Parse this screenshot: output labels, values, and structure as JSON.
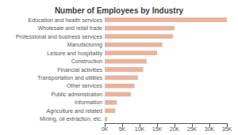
{
  "chart_data": {
    "type": "bar",
    "orientation": "horizontal",
    "title": "Number of Employees by Industry",
    "categories": [
      "Mining, oil extraction, etc.",
      "Agriculture and related",
      "Information",
      "Public administration",
      "Other services",
      "Transportation and utilities",
      "Financial activities",
      "Construction",
      "Leisure and hospitality",
      "Manufacturing",
      "Professional and business services",
      "Wholesale and retail trade",
      "Education and health services"
    ],
    "values": [
      700,
      3000,
      3500,
      7500,
      8500,
      9500,
      11000,
      12000,
      15000,
      16500,
      19500,
      20000,
      35000
    ],
    "color": "#e8b4a0",
    "xlim": [
      0,
      35000
    ],
    "xticks": [
      {
        "value": 0,
        "label": "0K"
      },
      {
        "value": 5000,
        "label": "5K"
      },
      {
        "value": 10000,
        "label": "10K"
      },
      {
        "value": 15000,
        "label": "15K"
      },
      {
        "value": 20000,
        "label": "20K"
      },
      {
        "value": 25000,
        "label": "25K"
      },
      {
        "value": 30000,
        "label": "30K"
      },
      {
        "value": 35000,
        "label": "35K"
      }
    ],
    "grid": false
  }
}
